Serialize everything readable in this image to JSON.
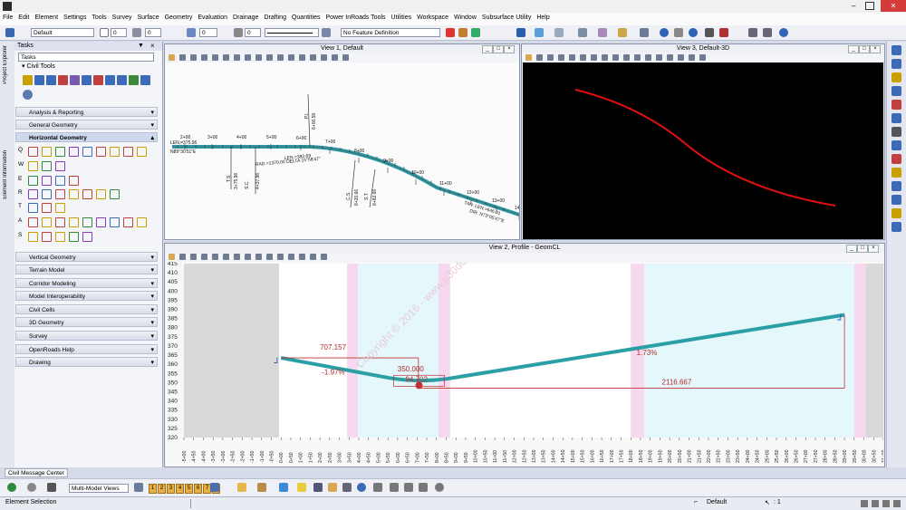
{
  "menu": [
    "File",
    "Edit",
    "Element",
    "Settings",
    "Tools",
    "Survey",
    "Surface",
    "Geometry",
    "Evaluation",
    "Drainage",
    "Drafting",
    "Quantities",
    "Power InRoads Tools",
    "Utilities",
    "Workspace",
    "Window",
    "Subsurface Utility",
    "Help"
  ],
  "toolbar": {
    "level_value": "Default",
    "color_value": "0",
    "weight_value": "0",
    "style_value": "0",
    "transparency_value": "0",
    "priority_value": "0",
    "feature_value": "No Feature Definition"
  },
  "sidebar_tabs": [
    "Project Explorer",
    "Element Information"
  ],
  "tasks": {
    "title": "Tasks",
    "combo": "Tasks",
    "root": "Civil Tools",
    "sections": [
      "Analysis & Reporting",
      "General Geometry",
      "Horizontal Geometry",
      "Vertical Geometry",
      "Terrain Model",
      "Corridor Modeling",
      "Model Interoperability",
      "Civil Cells",
      "3D Geometry",
      "Survey",
      "OpenRoads Help",
      "Drawing"
    ],
    "row_letters": [
      "Q",
      "W",
      "E",
      "R",
      "T",
      "A",
      "S"
    ]
  },
  "view1": {
    "title": "View 1, Default",
    "stations": [
      "2+00",
      "3+00",
      "4+00",
      "5+00",
      "6+00",
      "7+00",
      "8+00",
      "9+00",
      "10+00",
      "11+00",
      "12+00",
      "13+00",
      "14+00"
    ],
    "annotations": {
      "len_start": "LEN.=375.96",
      "brg_start": "N89°30'51\"E",
      "pi": "P.I.",
      "pi_sta": "6+00.59",
      "ts": "T.S.",
      "ts_sta": "3+75.96",
      "sc": "S.C.",
      "sc_sta": "4+37.96",
      "curve": "RAD.=1370.00 DELTA 15°58'47\"",
      "curve_len": "LEN.=382.69",
      "cs": "C.S.",
      "cs_sta": "8+20.66",
      "st": "S.T.",
      "st_sta": "8+82.66",
      "tan": "TAN. LEN.=646.01",
      "dir": "DIR. N73°05'47\"E"
    }
  },
  "view3": {
    "title": "View 3, Default-3D"
  },
  "view2": {
    "title": "View 2, Profile - GeomCL",
    "y_ticks": [
      "415",
      "410",
      "405",
      "400",
      "395",
      "390",
      "385",
      "380",
      "375",
      "370",
      "365",
      "360",
      "355",
      "350",
      "345",
      "340",
      "335",
      "330",
      "325",
      "320"
    ],
    "x_ticks": [
      "-5+00",
      "-4+50",
      "-4+00",
      "-3+50",
      "-3+00",
      "-2+50",
      "-2+00",
      "-1+50",
      "-1+00",
      "-0+50",
      "0+00",
      "0+50",
      "1+00",
      "1+50",
      "2+00",
      "2+50",
      "3+00",
      "3+50",
      "4+00",
      "4+50",
      "5+00",
      "5+50",
      "6+00",
      "6+50",
      "7+00",
      "7+50",
      "8+00",
      "8+50",
      "9+00",
      "9+50",
      "10+00",
      "10+50",
      "11+00",
      "11+50",
      "12+00",
      "12+50",
      "13+00",
      "13+50",
      "14+00",
      "14+50",
      "15+00",
      "15+50",
      "16+00",
      "16+50",
      "17+00",
      "17+50",
      "18+00",
      "18+50",
      "19+00",
      "19+50",
      "20+00",
      "20+50",
      "21+00",
      "21+50",
      "22+00",
      "22+50",
      "23+00",
      "23+50",
      "24+00",
      "24+50",
      "25+00",
      "25+50",
      "26+00",
      "26+50",
      "27+00",
      "27+50",
      "28+00",
      "28+50",
      "29+00",
      "29+50",
      "30+00",
      "30+50",
      "31+00"
    ],
    "labels": {
      "len1": "707.157",
      "grade1": "-1.97%",
      "pvi": "350.000",
      "vc": "94.702",
      "grade2": "1.73%",
      "len2": "2116.667"
    }
  },
  "watermark": "Copyright © 2016 - www.p30download.com",
  "bottom": {
    "message_center": "Civil Message Center",
    "views_combo": "Multi-Model Views",
    "view_numbers": [
      "1",
      "2",
      "3",
      "4",
      "5",
      "6",
      "7",
      "8"
    ],
    "status_left": "Element Selection",
    "status_level": "Default",
    "status_count": ": 1"
  },
  "colors": {
    "alignment": "#2a9ba6",
    "profile": "#2aa0a6",
    "curve_band": "#e4f7fb",
    "pink_band": "#f6d8ef",
    "curve3d": "#e01010"
  }
}
